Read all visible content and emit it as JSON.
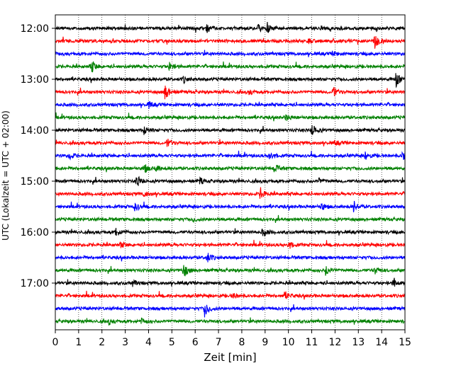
{
  "chart_data": {
    "type": "line",
    "title": "",
    "xlabel": "Zeit  [min]",
    "ylabel": "UTC (Lokalzeit = UTC + 02:00)",
    "xlim": [
      0,
      15
    ],
    "x_ticks": [
      0,
      1,
      2,
      3,
      4,
      5,
      6,
      7,
      8,
      9,
      10,
      11,
      12,
      13,
      14,
      15
    ],
    "x_tick_labels": [
      "0",
      "1",
      "2",
      "3",
      "4",
      "5",
      "6",
      "7",
      "8",
      "9",
      "10",
      "11",
      "12",
      "13",
      "14",
      "15"
    ],
    "y_tick_labels": [
      "12:00",
      "13:00",
      "14:00",
      "15:00",
      "16:00",
      "17:00"
    ],
    "y_tick_rows": [
      0,
      4,
      8,
      12,
      16,
      20
    ],
    "grid": "vertical dotted lines at each minute",
    "rows_per_hour": 4,
    "minutes_per_row": 15,
    "color_cycle": [
      "#000000",
      "#ff0000",
      "#0000ff",
      "#008000"
    ],
    "rows": [
      {
        "start": "12:00",
        "events": [
          {
            "t": 6.5,
            "amp": 0.9
          },
          {
            "t": 9.1,
            "amp": 1.0
          },
          {
            "t": 8.7,
            "amp": 0.6
          }
        ]
      },
      {
        "start": "12:15",
        "events": [
          {
            "t": 13.7,
            "amp": 1.6
          },
          {
            "t": 10.8,
            "amp": 0.5
          }
        ]
      },
      {
        "start": "12:30",
        "events": [
          {
            "t": 11.9,
            "amp": 0.5
          }
        ]
      },
      {
        "start": "12:45",
        "events": [
          {
            "t": 1.55,
            "amp": 1.3
          },
          {
            "t": 4.9,
            "amp": 0.8
          }
        ]
      },
      {
        "start": "13:00",
        "events": [
          {
            "t": 14.6,
            "amp": 1.6
          },
          {
            "t": 5.5,
            "amp": 0.6
          }
        ]
      },
      {
        "start": "13:15",
        "events": [
          {
            "t": 4.7,
            "amp": 1.6
          },
          {
            "t": 11.9,
            "amp": 1.2
          },
          {
            "t": 8.3,
            "amp": 0.6
          }
        ]
      },
      {
        "start": "13:30",
        "events": [
          {
            "t": 4.0,
            "amp": 0.6
          }
        ]
      },
      {
        "start": "13:45",
        "events": [
          {
            "t": 9.9,
            "amp": 0.6
          }
        ]
      },
      {
        "start": "14:00",
        "events": [
          {
            "t": 11.0,
            "amp": 1.3
          },
          {
            "t": 3.8,
            "amp": 0.8
          }
        ]
      },
      {
        "start": "14:15",
        "events": [
          {
            "t": 4.8,
            "amp": 0.8
          },
          {
            "t": 12.0,
            "amp": 0.4
          }
        ]
      },
      {
        "start": "14:30",
        "events": [
          {
            "t": 0.6,
            "amp": 0.8
          },
          {
            "t": 9.2,
            "amp": 0.9
          },
          {
            "t": 13.3,
            "amp": 1.0
          },
          {
            "t": 14.9,
            "amp": 1.3
          }
        ]
      },
      {
        "start": "14:45",
        "events": [
          {
            "t": 3.8,
            "amp": 0.9
          },
          {
            "t": 9.4,
            "amp": 0.9
          },
          {
            "t": 4.3,
            "amp": 0.6
          }
        ]
      },
      {
        "start": "15:00",
        "events": [
          {
            "t": 3.5,
            "amp": 1.2
          },
          {
            "t": 6.2,
            "amp": 0.6
          },
          {
            "t": 11.3,
            "amp": 0.6
          }
        ]
      },
      {
        "start": "15:15",
        "events": [
          {
            "t": 8.8,
            "amp": 1.2
          },
          {
            "t": 3.8,
            "amp": 0.6
          }
        ]
      },
      {
        "start": "15:30",
        "events": [
          {
            "t": 3.4,
            "amp": 1.0
          },
          {
            "t": 12.8,
            "amp": 1.1
          },
          {
            "t": 11.4,
            "amp": 0.7
          }
        ]
      },
      {
        "start": "15:45",
        "events": [
          {
            "t": 5.9,
            "amp": 0.4
          }
        ]
      },
      {
        "start": "16:00",
        "events": [
          {
            "t": 2.6,
            "amp": 0.9
          },
          {
            "t": 8.9,
            "amp": 0.9
          }
        ]
      },
      {
        "start": "16:15",
        "events": [
          {
            "t": 10.0,
            "amp": 0.8
          },
          {
            "t": 2.8,
            "amp": 0.5
          }
        ]
      },
      {
        "start": "16:30",
        "events": [
          {
            "t": 6.5,
            "amp": 1.1
          }
        ]
      },
      {
        "start": "16:45",
        "events": [
          {
            "t": 5.5,
            "amp": 1.6
          },
          {
            "t": 11.6,
            "amp": 1.0
          },
          {
            "t": 13.7,
            "amp": 0.7
          }
        ]
      },
      {
        "start": "17:00",
        "events": [
          {
            "t": 14.5,
            "amp": 1.0
          },
          {
            "t": 3.3,
            "amp": 0.6
          }
        ]
      },
      {
        "start": "17:15",
        "events": [
          {
            "t": 9.8,
            "amp": 1.0
          },
          {
            "t": 7.6,
            "amp": 0.5
          }
        ]
      },
      {
        "start": "17:30",
        "events": [
          {
            "t": 6.4,
            "amp": 1.6
          }
        ]
      },
      {
        "start": "17:45",
        "events": [
          {
            "t": 2.3,
            "amp": 0.6
          },
          {
            "t": 3.7,
            "amp": 0.5
          }
        ]
      }
    ]
  }
}
